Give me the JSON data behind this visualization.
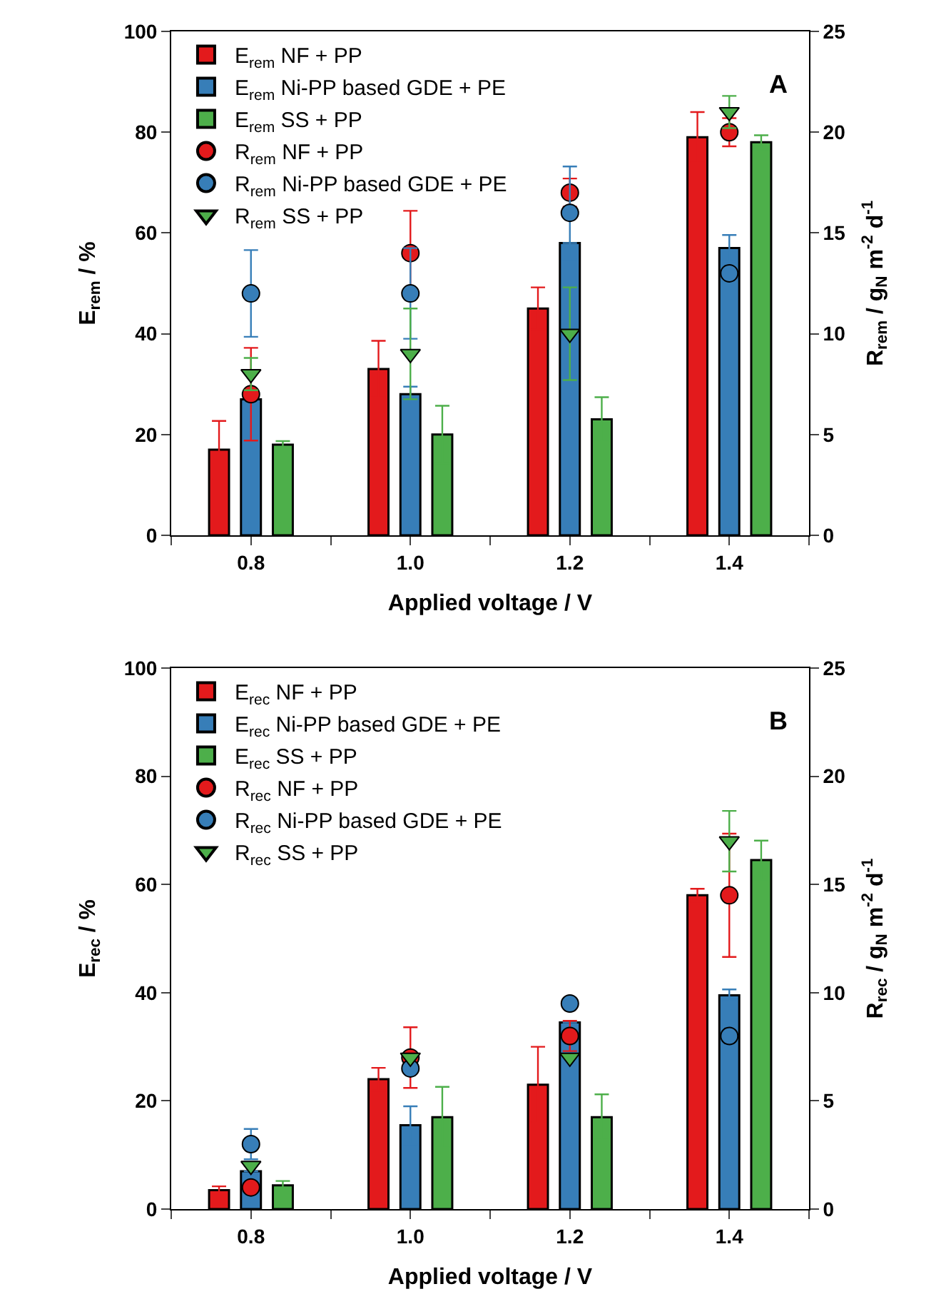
{
  "chart_data": [
    {
      "type": "bar",
      "xlabel": "Applied voltage / V",
      "ylabel": "E$_{rem}$ / %",
      "y2label": "R$_{rem}$ / g$_{N}$ m$^{-2}$ d$^{-1}$",
      "xlim": [
        0.7,
        1.5
      ],
      "xticks": [
        {
          "value": 0.7,
          "label": null
        },
        {
          "value": 0.8,
          "label": "0.8"
        },
        {
          "value": 0.9,
          "label": null
        },
        {
          "value": 1.0,
          "label": "1.0"
        },
        {
          "value": 1.1,
          "label": null
        },
        {
          "value": 1.2,
          "label": "1.2"
        },
        {
          "value": 1.3,
          "label": null
        },
        {
          "value": 1.4,
          "label": "1.4"
        },
        {
          "value": 1.5,
          "label": null
        }
      ],
      "ylim": [
        0,
        100
      ],
      "yticks": [
        0,
        20,
        40,
        60,
        80,
        100
      ],
      "y2lim": [
        0,
        25
      ],
      "y2ticks": [
        0,
        5,
        10,
        15,
        20,
        25
      ],
      "legend": "top left",
      "annotations": [
        "A"
      ],
      "series": [
        {
          "name": "E$_{rem}$ NF + PP",
          "color": "#e31a1c",
          "x": [
            0.76,
            0.96,
            1.16,
            1.36
          ],
          "values": [
            17,
            33,
            45,
            79
          ],
          "errors": [
            5.7,
            5.6,
            4.2,
            5
          ]
        },
        {
          "name": "E$_{rem}$ Ni-PP based GDE + PE",
          "color": "#377eb8",
          "x": [
            0.8,
            1.0,
            1.2,
            1.4
          ],
          "values": [
            27,
            28,
            58,
            57
          ],
          "errors": [
            null,
            1.5,
            null,
            2.6
          ]
        },
        {
          "name": "E$_{rem}$ SS + PP",
          "color": "#4daf4a",
          "x": [
            0.84,
            1.04,
            1.24,
            1.44
          ],
          "values": [
            18,
            20,
            23,
            78
          ],
          "errors": [
            0.7,
            5.7,
            4.4,
            1.4
          ]
        },
        {
          "name": "R$_{rem}$ NF + PP",
          "type": "scatter",
          "axis": "y2",
          "marker": "circle",
          "color": "#e31a1c",
          "x": [
            0.8,
            1.0,
            1.2,
            1.4
          ],
          "values": [
            7,
            14,
            17,
            20
          ],
          "errors": [
            2.3,
            2.1,
            0.7,
            0.7
          ]
        },
        {
          "name": "R$_{rem}$ Ni-PP based GDE + PE",
          "type": "scatter",
          "axis": "y2",
          "marker": "circle",
          "color": "#377eb8",
          "x": [
            0.8,
            1.0,
            1.2,
            1.4
          ],
          "values": [
            12,
            12,
            16,
            13
          ],
          "errors": [
            2.15,
            2.25,
            2.3,
            null
          ]
        },
        {
          "name": "R$_{rem}$ SS + PP",
          "type": "scatter",
          "axis": "y2",
          "marker": "triangle",
          "color": "#4daf4a",
          "x": [
            0.8,
            1.0,
            1.2,
            1.4
          ],
          "values": [
            8,
            9,
            10,
            21
          ],
          "errors": [
            0.8,
            2.25,
            2.3,
            0.8
          ]
        }
      ]
    },
    {
      "type": "bar",
      "xlabel": "Applied voltage / V",
      "ylabel": "E$_{rec}$ / %",
      "y2label": "R$_{rec}$ / g$_{N}$ m$^{-2}$ d$^{-1}$",
      "xlim": [
        0.7,
        1.5
      ],
      "xticks": [
        {
          "value": 0.7,
          "label": null
        },
        {
          "value": 0.8,
          "label": "0.8"
        },
        {
          "value": 0.9,
          "label": null
        },
        {
          "value": 1.0,
          "label": "1.0"
        },
        {
          "value": 1.1,
          "label": null
        },
        {
          "value": 1.2,
          "label": "1.2"
        },
        {
          "value": 1.3,
          "label": null
        },
        {
          "value": 1.4,
          "label": "1.4"
        },
        {
          "value": 1.5,
          "label": null
        }
      ],
      "ylim": [
        0,
        100
      ],
      "yticks": [
        0,
        20,
        40,
        60,
        80,
        100
      ],
      "y2lim": [
        0,
        25
      ],
      "y2ticks": [
        0,
        5,
        10,
        15,
        20,
        25
      ],
      "legend": "top left",
      "annotations": [
        "B"
      ],
      "series": [
        {
          "name": "E$_{rec}$ NF + PP",
          "color": "#e31a1c",
          "x": [
            0.76,
            0.96,
            1.16,
            1.36
          ],
          "values": [
            3.5,
            24,
            23,
            58
          ],
          "errors": [
            0.7,
            2.1,
            7,
            1.2
          ]
        },
        {
          "name": "E$_{rec}$ Ni-PP based GDE + PE",
          "color": "#377eb8",
          "x": [
            0.8,
            1.0,
            1.2,
            1.4
          ],
          "values": [
            7,
            15.5,
            34.5,
            39.5
          ],
          "errors": [
            null,
            3.5,
            null,
            1.1
          ]
        },
        {
          "name": "E$_{rec}$ SS + PP",
          "color": "#4daf4a",
          "x": [
            0.84,
            1.04,
            1.24,
            1.44
          ],
          "values": [
            4.4,
            17,
            17,
            64.5
          ],
          "errors": [
            0.8,
            5.6,
            4.2,
            3.6
          ]
        },
        {
          "name": "R$_{rec}$ NF + PP",
          "type": "scatter",
          "axis": "y2",
          "marker": "circle",
          "color": "#e31a1c",
          "x": [
            0.8,
            1.0,
            1.2,
            1.4
          ],
          "values": [
            1,
            7,
            8,
            14.5
          ],
          "errors": [
            null,
            1.4,
            0.7,
            2.85
          ]
        },
        {
          "name": "R$_{rec}$ Ni-PP based GDE + PE",
          "type": "scatter",
          "axis": "y2",
          "marker": "circle",
          "color": "#377eb8",
          "x": [
            0.8,
            1.0,
            1.2,
            1.4
          ],
          "values": [
            3,
            6.5,
            9.5,
            8
          ],
          "errors": [
            0.7,
            null,
            null,
            null
          ]
        },
        {
          "name": "R$_{rec}$ SS + PP",
          "type": "scatter",
          "axis": "y2",
          "marker": "triangle",
          "color": "#4daf4a",
          "x": [
            0.8,
            1.0,
            1.2,
            1.4
          ],
          "values": [
            2,
            7,
            7,
            17
          ],
          "errors": [
            null,
            null,
            null,
            1.4
          ]
        }
      ]
    }
  ]
}
